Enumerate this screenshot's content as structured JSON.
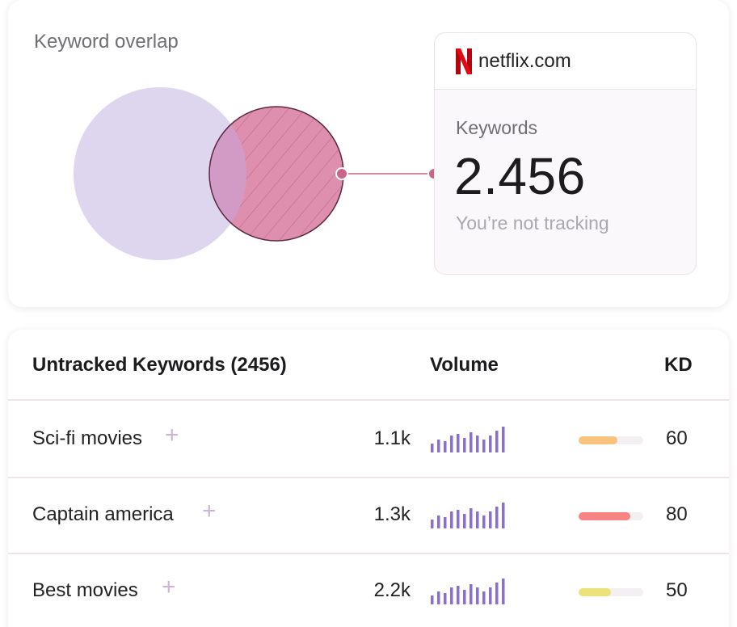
{
  "overlap": {
    "title": "Keyword overlap",
    "domain": "netflix.com",
    "logo_letter": "N",
    "keywords_label": "Keywords",
    "keywords_count": "2.456",
    "note": "You’re not tracking"
  },
  "table": {
    "header_keywords": "Untracked Keywords (2456)",
    "header_volume": "Volume",
    "header_kd": "KD",
    "rows": [
      {
        "keyword": "Sci-fi movies",
        "volume": "1.1k",
        "kd": "60",
        "kd_fraction": 0.6,
        "kd_color": "#f9c27f",
        "bars": [
          5,
          7,
          6,
          9,
          10,
          8,
          11,
          9,
          7,
          9,
          12,
          14
        ]
      },
      {
        "keyword": "Captain america",
        "volume": "1.3k",
        "kd": "80",
        "kd_fraction": 0.8,
        "kd_color": "#f78383",
        "bars": [
          5,
          7,
          6,
          9,
          10,
          8,
          11,
          9,
          7,
          9,
          12,
          14
        ]
      },
      {
        "keyword": "Best movies",
        "volume": "2.2k",
        "kd": "50",
        "kd_fraction": 0.5,
        "kd_color": "#ece27a",
        "bars": [
          5,
          7,
          6,
          9,
          10,
          8,
          11,
          9,
          7,
          9,
          12,
          14
        ]
      }
    ]
  },
  "colors": {
    "tracked_circle": "#ddd6ee",
    "competitor_circle": "#df8fae",
    "intersection": "#d19bc6",
    "spark_bar": "#8a6fd1",
    "accent": "#c9648a"
  }
}
